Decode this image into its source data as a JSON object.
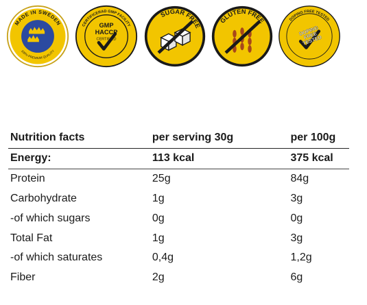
{
  "badges": [
    {
      "name": "made-in-sweden-badge",
      "text_top": "MADE IN SWEDEN",
      "text_bottom": "100% PREMIUM QUALITY",
      "colors": {
        "ring": "#c8a21a",
        "inner": "#2b4aa0",
        "crowns": "#f2c500"
      }
    },
    {
      "name": "gmp-haccp-badge",
      "text_ring": "CERTIFICERAD GMP FACILITY",
      "text_center_1": "GMP",
      "text_center_2": "HACCP",
      "text_center_3": "CERTIFIED",
      "colors": {
        "ring": "#f2c500",
        "inner": "#f2c500"
      }
    },
    {
      "name": "sugar-free-badge",
      "text_ring": "SUGAR FREE",
      "colors": {
        "ring": "#f2c500"
      }
    },
    {
      "name": "gluten-free-badge",
      "text_ring": "GLUTEN FREE",
      "colors": {
        "ring": "#f2c500"
      }
    },
    {
      "name": "doping-free-badge",
      "text_ring": "DOPING FREE TESTED",
      "text_center_1": "DOPING",
      "text_center_2": "FREE",
      "text_center_3": "TESTED",
      "colors": {
        "ring": "#f2c500"
      }
    }
  ],
  "nutrition": {
    "headers": [
      "Nutrition facts",
      "per serving 30g",
      "per 100g"
    ],
    "rows": [
      {
        "label": "Energy:",
        "serving": "113 kcal",
        "per100": "375 kcal"
      },
      {
        "label": "Protein",
        "serving": "25g",
        "per100": "84g"
      },
      {
        "label": "Carbohydrate",
        "serving": "1g",
        "per100": "3g"
      },
      {
        "label": "-of which sugars",
        "serving": "0g",
        "per100": "0g"
      },
      {
        "label": "Total Fat",
        "serving": "1g",
        "per100": "3g"
      },
      {
        "label": "-of which saturates",
        "serving": "0,4g",
        "per100": "1,2g"
      },
      {
        "label": "Fiber",
        "serving": "2g",
        "per100": "6g"
      }
    ]
  }
}
